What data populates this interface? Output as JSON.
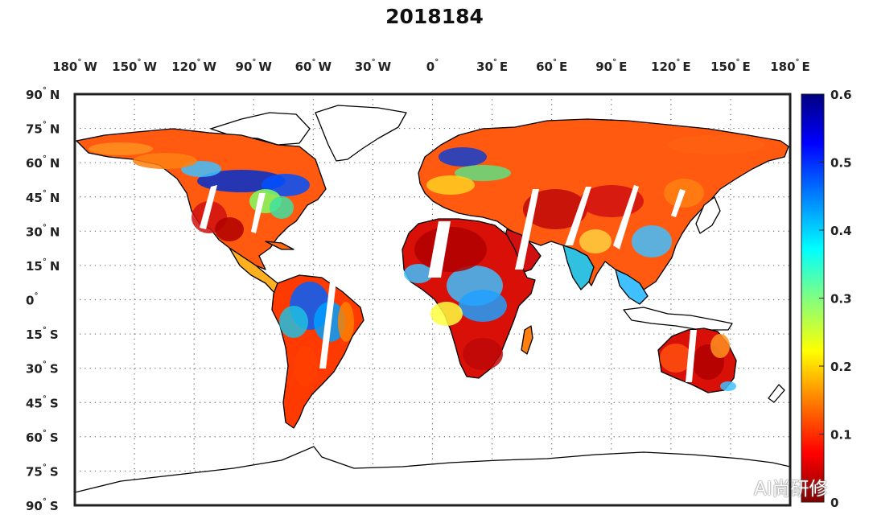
{
  "title": "2018184",
  "map": {
    "longitude_labels": [
      "180",
      "150",
      "120",
      "90",
      "60",
      "30",
      "0",
      "30",
      "60",
      "90",
      "120",
      "150",
      "180"
    ],
    "longitude_hemi": [
      "W",
      "W",
      "W",
      "W",
      "W",
      "W",
      "",
      "E",
      "E",
      "E",
      "E",
      "E",
      "E"
    ],
    "latitude_labels": [
      "90",
      "75",
      "60",
      "45",
      "30",
      "15",
      "0",
      "15",
      "30",
      "45",
      "60",
      "75",
      "90"
    ],
    "latitude_hemi": [
      "N",
      "N",
      "N",
      "N",
      "N",
      "N",
      "",
      "S",
      "S",
      "S",
      "S",
      "S",
      "S"
    ],
    "degree_symbol": "°",
    "grid": "dotted"
  },
  "colorbar": {
    "min": 0,
    "max": 0.6,
    "tick_labels": [
      "0.6",
      "0.5",
      "0.4",
      "0.3",
      "0.2",
      "0.1",
      "0"
    ],
    "colormap": "jet",
    "colors": [
      "#800000",
      "#ff0000",
      "#ff8000",
      "#ffff00",
      "#80ff80",
      "#00ffff",
      "#0080ff",
      "#0000ff",
      "#000080"
    ]
  },
  "watermark": {
    "text": "AI尚研修",
    "icon": "wechat-icon"
  }
}
